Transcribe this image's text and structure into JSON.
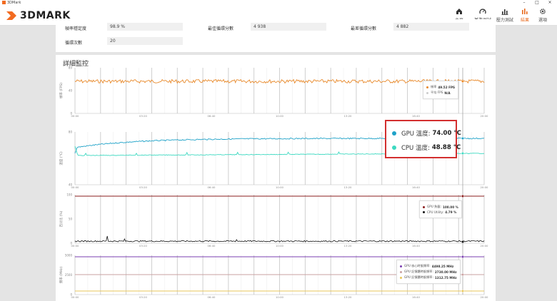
{
  "window": {
    "title": "3DMark"
  },
  "header": {
    "logo_text": "3DMARK",
    "nav": [
      {
        "label": "主頁",
        "icon": "home-icon"
      },
      {
        "label": "基準測試",
        "icon": "gauge-icon"
      },
      {
        "label": "壓力測試",
        "icon": "stress-chart-icon"
      },
      {
        "label": "結果",
        "icon": "bar-chart-icon",
        "active": true
      },
      {
        "label": "選項",
        "icon": "gear-icon"
      }
    ]
  },
  "stats": {
    "frame_stability_label": "幀率穩定度",
    "frame_stability_value": "98.9 %",
    "best_loop_label": "最佳循環分數",
    "best_loop_value": "4 938",
    "worst_loop_label": "最差循環分數",
    "worst_loop_value": "4 882",
    "loop_count_label": "循環次數",
    "loop_count_value": "20"
  },
  "monitor": {
    "title": "詳細監控",
    "x_ticks": [
      "00:00",
      "03:20",
      "06:40",
      "10:00",
      "13:20",
      "16:40",
      "20:00"
    ],
    "charts": [
      {
        "ylabel": "幀率 (FPS)",
        "yticks": [
          "80",
          "40",
          "0"
        ],
        "legend": [
          {
            "name": "幀率",
            "value": "49.52 FPS",
            "color": "#e8892a"
          },
          {
            "name": "平均 FPS",
            "value": "N/A",
            "color": "#cccccc"
          }
        ]
      },
      {
        "ylabel": "溫度 (°C)",
        "yticks": [
          "80",
          "40"
        ],
        "legend": [
          {
            "name": "GPU 溫度:",
            "value": "74.00 °C",
            "color": "#1fa2c8"
          },
          {
            "name": "CPU 溫度:",
            "value": "48.88 °C",
            "color": "#3dd9c1"
          }
        ]
      },
      {
        "ylabel": "百分比 (%)",
        "yticks": [
          "100",
          "50",
          "0"
        ],
        "legend": [
          {
            "name": "GPU 負載:",
            "value": "100.00 %",
            "color": "#8b1e1e"
          },
          {
            "name": "CPU Utility:",
            "value": "4.79 %",
            "color": "#111111"
          }
        ]
      },
      {
        "ylabel": "頻率 (MHz)",
        "yticks": [
          "5000",
          "2500",
          "0"
        ],
        "legend": [
          {
            "name": "GPU 核心時脈頻率:",
            "value": "4498.25 MHz",
            "color": "#7b3fb0"
          },
          {
            "name": "GPU 記憶體時脈頻率:",
            "value": "2730.00 MHz",
            "color": "#c9a0a0"
          },
          {
            "name": "GPU 記憶體時脈頻率:",
            "value": "1312.75 MHz",
            "color": "#e8c65a"
          }
        ]
      }
    ]
  },
  "callout": {
    "gpu_label": "GPU 溫度:",
    "gpu_value": "74.00 °C",
    "gpu_color": "#1fa2c8",
    "cpu_label": "CPU 溫度:",
    "cpu_value": "48.88 °C",
    "cpu_color": "#3dd9c1",
    "border_color": "#d32f2f"
  }
}
